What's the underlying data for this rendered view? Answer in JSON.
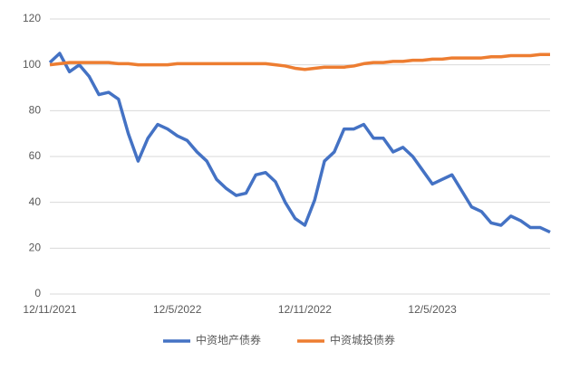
{
  "chart_data": {
    "type": "line",
    "categories": [
      "12/11/2021",
      null,
      null,
      null,
      null,
      null,
      null,
      null,
      null,
      null,
      null,
      null,
      null,
      "12/5/2022",
      null,
      null,
      null,
      null,
      null,
      null,
      null,
      null,
      null,
      null,
      null,
      null,
      "12/11/2022",
      null,
      null,
      null,
      null,
      null,
      null,
      null,
      null,
      null,
      null,
      null,
      null,
      "12/5/2023",
      null,
      null,
      null,
      null,
      null,
      null,
      null,
      null,
      null,
      null,
      null,
      null
    ],
    "series": [
      {
        "name": "中资地产债券",
        "color": "#4472c4",
        "values": [
          101,
          105,
          97,
          100,
          95,
          87,
          88,
          85,
          70,
          58,
          68,
          74,
          72,
          69,
          67,
          62,
          58,
          50,
          46,
          43,
          44,
          52,
          53,
          49,
          40,
          33,
          30,
          41,
          58,
          62,
          72,
          72,
          74,
          68,
          68,
          62,
          64,
          60,
          54,
          48,
          50,
          52,
          45,
          38,
          36,
          31,
          30,
          34,
          32,
          29,
          29,
          27
        ]
      },
      {
        "name": "中资城投债券",
        "color": "#ed7d31",
        "values": [
          100,
          100.5,
          101,
          101,
          101,
          101,
          101,
          100.5,
          100.5,
          100,
          100,
          100,
          100,
          100.5,
          100.5,
          100.5,
          100.5,
          100.5,
          100.5,
          100.5,
          100.5,
          100.5,
          100.5,
          100,
          99.5,
          98.5,
          98,
          98.5,
          99,
          99,
          99,
          99.5,
          100.5,
          101,
          101,
          101.5,
          101.5,
          102,
          102,
          102.5,
          102.5,
          103,
          103,
          103,
          103,
          103.5,
          103.5,
          104,
          104,
          104,
          104.5,
          104.5
        ]
      }
    ],
    "ylim": [
      0,
      120
    ],
    "yticks": [
      0,
      20,
      40,
      60,
      80,
      100,
      120
    ],
    "grid": true,
    "legend": "bottom"
  }
}
